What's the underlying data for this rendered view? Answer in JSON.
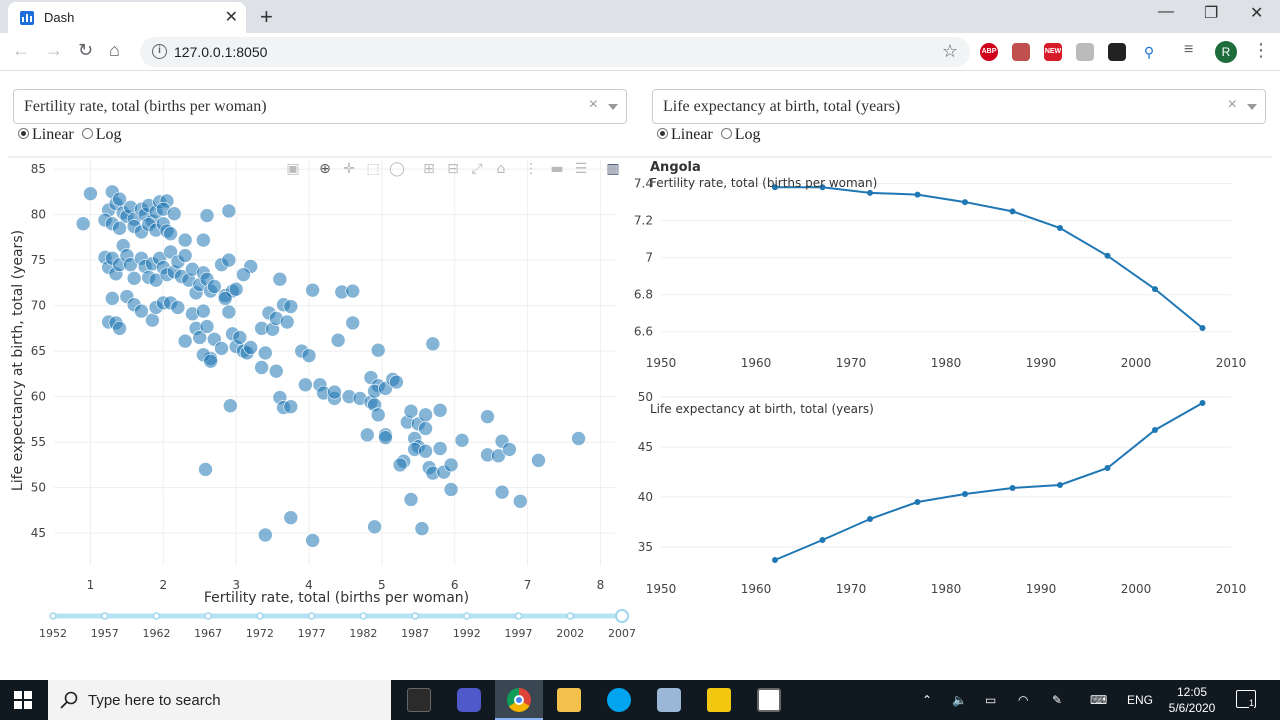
{
  "browser": {
    "tab_title": "Dash",
    "url": "127.0.0.1:8050",
    "avatar_letter": "R",
    "extensions": [
      "ABP",
      "pdf-icon",
      "NEW",
      "puzzle-icon",
      "app-icon",
      "edge-icon"
    ]
  },
  "controls": {
    "x_dropdown": "Fertility rate, total (births per woman)",
    "y_dropdown": "Life expectancy at birth, total (years)",
    "x_scale": {
      "options": [
        "Linear",
        "Log"
      ],
      "selected": "Linear"
    },
    "y_scale": {
      "options": [
        "Linear",
        "Log"
      ],
      "selected": "Linear"
    }
  },
  "modebar": [
    "camera-icon",
    "zoom-icon",
    "pan-icon",
    "box-select-icon",
    "lasso-icon",
    "zoom-in-icon",
    "zoom-out-icon",
    "autoscale-icon",
    "reset-axes-icon",
    "spike-lines-icon",
    "hover-closest-icon",
    "hover-compare-icon",
    "plotly-logo-icon"
  ],
  "slider": {
    "ticks": [
      "1952",
      "1957",
      "1962",
      "1967",
      "1972",
      "1977",
      "1982",
      "1987",
      "1992",
      "1997",
      "2002",
      "2007"
    ],
    "selected": "2007"
  },
  "chart_data": [
    {
      "type": "scatter",
      "xlabel": "Fertility rate, total (births per woman)",
      "ylabel": "Life expectancy at birth, total (years)",
      "xlim": [
        0.5,
        8.2
      ],
      "ylim": [
        41.5,
        86
      ],
      "xticks": [
        "1",
        "2",
        "3",
        "4",
        "5",
        "6",
        "7",
        "8"
      ],
      "yticks": [
        "45",
        "50",
        "55",
        "60",
        "65",
        "70",
        "75",
        "80",
        "85"
      ],
      "color": "#1f77b4",
      "points": [
        [
          0.9,
          79
        ],
        [
          1.0,
          82.3
        ],
        [
          1.3,
          82.5
        ],
        [
          1.25,
          80.5
        ],
        [
          1.35,
          81.2
        ],
        [
          1.4,
          81.7
        ],
        [
          1.45,
          80.2
        ],
        [
          1.5,
          79.8
        ],
        [
          1.55,
          80.8
        ],
        [
          1.6,
          79.5
        ],
        [
          1.7,
          80.6
        ],
        [
          1.75,
          80
        ],
        [
          1.8,
          81
        ],
        [
          1.85,
          79.3
        ],
        [
          1.9,
          80.3
        ],
        [
          1.95,
          81.4
        ],
        [
          2.05,
          81.5
        ],
        [
          2.0,
          80.6
        ],
        [
          2.15,
          80.1
        ],
        [
          1.2,
          79.4
        ],
        [
          1.3,
          79
        ],
        [
          1.4,
          78.5
        ],
        [
          1.6,
          78.7
        ],
        [
          1.7,
          78.1
        ],
        [
          1.8,
          78.9
        ],
        [
          1.9,
          78.3
        ],
        [
          2.0,
          79
        ],
        [
          2.05,
          78.2
        ],
        [
          2.1,
          77.9
        ],
        [
          2.3,
          77.2
        ],
        [
          2.55,
          77.2
        ],
        [
          2.6,
          79.9
        ],
        [
          2.9,
          80.4
        ],
        [
          1.2,
          75.3
        ],
        [
          1.25,
          74.2
        ],
        [
          1.3,
          75.2
        ],
        [
          1.35,
          73.5
        ],
        [
          1.4,
          74.5
        ],
        [
          1.45,
          76.6
        ],
        [
          1.5,
          75.5
        ],
        [
          1.55,
          74.5
        ],
        [
          1.6,
          73
        ],
        [
          1.7,
          75.2
        ],
        [
          1.75,
          74.3
        ],
        [
          1.8,
          73.1
        ],
        [
          1.85,
          74.6
        ],
        [
          1.9,
          72.8
        ],
        [
          1.95,
          75.2
        ],
        [
          2.0,
          74.2
        ],
        [
          2.05,
          73.4
        ],
        [
          2.1,
          75.9
        ],
        [
          2.15,
          73.7
        ],
        [
          2.2,
          74.8
        ],
        [
          2.25,
          73.2
        ],
        [
          2.3,
          75.5
        ],
        [
          2.35,
          72.8
        ],
        [
          2.4,
          74
        ],
        [
          2.45,
          71.4
        ],
        [
          2.5,
          72.3
        ],
        [
          2.55,
          73.6
        ],
        [
          2.6,
          72.9
        ],
        [
          2.65,
          71.6
        ],
        [
          2.7,
          72.1
        ],
        [
          2.8,
          74.5
        ],
        [
          2.85,
          71.1
        ],
        [
          2.9,
          75
        ],
        [
          2.95,
          71.6
        ],
        [
          3.0,
          71.8
        ],
        [
          3.2,
          74.3
        ],
        [
          3.1,
          73.4
        ],
        [
          1.25,
          68.2
        ],
        [
          1.35,
          68.1
        ],
        [
          1.4,
          67.5
        ],
        [
          1.3,
          70.8
        ],
        [
          1.5,
          71
        ],
        [
          1.6,
          70.1
        ],
        [
          1.7,
          69.4
        ],
        [
          1.85,
          68.4
        ],
        [
          1.9,
          69.8
        ],
        [
          2.0,
          70.3
        ],
        [
          2.1,
          70.3
        ],
        [
          2.2,
          69.8
        ],
        [
          2.3,
          66.1
        ],
        [
          2.4,
          69.1
        ],
        [
          2.45,
          67.5
        ],
        [
          2.5,
          66.5
        ],
        [
          2.55,
          69.4
        ],
        [
          2.6,
          67.7
        ],
        [
          2.65,
          64.2
        ],
        [
          2.7,
          66.3
        ],
        [
          2.8,
          65.3
        ],
        [
          2.85,
          70.8
        ],
        [
          2.9,
          69.3
        ],
        [
          2.95,
          66.9
        ],
        [
          3.0,
          65.5
        ],
        [
          3.05,
          66.5
        ],
        [
          3.1,
          65
        ],
        [
          3.15,
          64.8
        ],
        [
          3.2,
          65.4
        ],
        [
          2.55,
          64.6
        ],
        [
          2.65,
          63.9
        ],
        [
          3.35,
          67.5
        ],
        [
          3.45,
          69.2
        ],
        [
          3.5,
          67.4
        ],
        [
          3.55,
          68.6
        ],
        [
          3.6,
          72.9
        ],
        [
          3.65,
          70.1
        ],
        [
          3.7,
          68.2
        ],
        [
          3.75,
          69.9
        ],
        [
          3.4,
          64.8
        ],
        [
          3.35,
          63.2
        ],
        [
          3.55,
          62.8
        ],
        [
          3.6,
          59.9
        ],
        [
          3.65,
          58.8
        ],
        [
          3.75,
          58.9
        ],
        [
          3.9,
          65
        ],
        [
          4.0,
          64.5
        ],
        [
          4.05,
          71.7
        ],
        [
          4.45,
          71.5
        ],
        [
          4.6,
          71.6
        ],
        [
          4.6,
          68.1
        ],
        [
          4.4,
          66.2
        ],
        [
          3.95,
          61.3
        ],
        [
          4.15,
          61.3
        ],
        [
          4.2,
          60.4
        ],
        [
          4.35,
          59.8
        ],
        [
          4.35,
          60.5
        ],
        [
          4.55,
          60
        ],
        [
          4.7,
          59.8
        ],
        [
          4.85,
          59.4
        ],
        [
          4.85,
          62.1
        ],
        [
          4.95,
          61.2
        ],
        [
          4.9,
          59.1
        ],
        [
          4.95,
          58
        ],
        [
          4.9,
          60.6
        ],
        [
          5.05,
          60.9
        ],
        [
          5.15,
          61.9
        ],
        [
          5.2,
          61.6
        ],
        [
          4.8,
          55.8
        ],
        [
          5.05,
          55.8
        ],
        [
          5.05,
          55.5
        ],
        [
          4.95,
          65.1
        ],
        [
          5.35,
          57.2
        ],
        [
          5.4,
          58.4
        ],
        [
          5.45,
          55.4
        ],
        [
          5.5,
          54.5
        ],
        [
          5.45,
          54.2
        ],
        [
          5.5,
          57
        ],
        [
          5.6,
          56.5
        ],
        [
          5.6,
          58
        ],
        [
          5.8,
          58.5
        ],
        [
          5.8,
          54.3
        ],
        [
          5.3,
          52.9
        ],
        [
          5.25,
          52.5
        ],
        [
          5.6,
          54
        ],
        [
          5.65,
          52.2
        ],
        [
          5.7,
          51.6
        ],
        [
          5.85,
          51.7
        ],
        [
          5.95,
          52.5
        ],
        [
          5.95,
          49.8
        ],
        [
          6.1,
          55.2
        ],
        [
          6.45,
          57.8
        ],
        [
          6.45,
          53.6
        ],
        [
          6.6,
          53.5
        ],
        [
          6.65,
          55.1
        ],
        [
          6.75,
          54.2
        ],
        [
          6.65,
          49.5
        ],
        [
          6.9,
          48.5
        ],
        [
          7.15,
          53
        ],
        [
          7.7,
          55.4
        ],
        [
          5.7,
          65.8
        ],
        [
          5.4,
          48.7
        ],
        [
          5.55,
          45.5
        ],
        [
          4.9,
          45.7
        ],
        [
          4.05,
          44.2
        ],
        [
          3.75,
          46.7
        ],
        [
          3.4,
          44.8
        ],
        [
          2.92,
          59
        ],
        [
          2.58,
          52
        ]
      ]
    },
    {
      "type": "line",
      "title": "Angola",
      "annotation": "Fertility rate, total (births per woman)",
      "x": [
        1962,
        1967,
        1972,
        1977,
        1982,
        1987,
        1992,
        1997,
        2002,
        2007
      ],
      "y": [
        7.38,
        7.38,
        7.35,
        7.34,
        7.3,
        7.25,
        7.16,
        7.01,
        6.83,
        6.62
      ],
      "xlim": [
        1950,
        2010
      ],
      "ylim": [
        6.55,
        7.43
      ],
      "xticks": [
        "1950",
        "1960",
        "1970",
        "1980",
        "1990",
        "2000",
        "2010"
      ],
      "yticks": [
        "6.6",
        "6.8",
        "7",
        "7.2",
        "7.4"
      ],
      "color": "#1f77b4"
    },
    {
      "type": "line",
      "annotation": "Life expectancy at birth, total (years)",
      "x": [
        1962,
        1967,
        1972,
        1977,
        1982,
        1987,
        1992,
        1997,
        2002,
        2007
      ],
      "y": [
        33.7,
        35.7,
        37.8,
        39.5,
        40.3,
        40.9,
        41.2,
        42.9,
        46.7,
        49.4
      ],
      "xlim": [
        1950,
        2010
      ],
      "ylim": [
        33,
        50
      ],
      "xticks": [
        "1950",
        "1960",
        "1970",
        "1980",
        "1990",
        "2000",
        "2010"
      ],
      "yticks": [
        "35",
        "40",
        "45",
        "50"
      ],
      "color": "#1f77b4"
    }
  ],
  "taskbar": {
    "search_placeholder": "Type here to search",
    "language": "ENG",
    "time": "12:05",
    "date": "5/6/2020",
    "notification_count": "1"
  }
}
